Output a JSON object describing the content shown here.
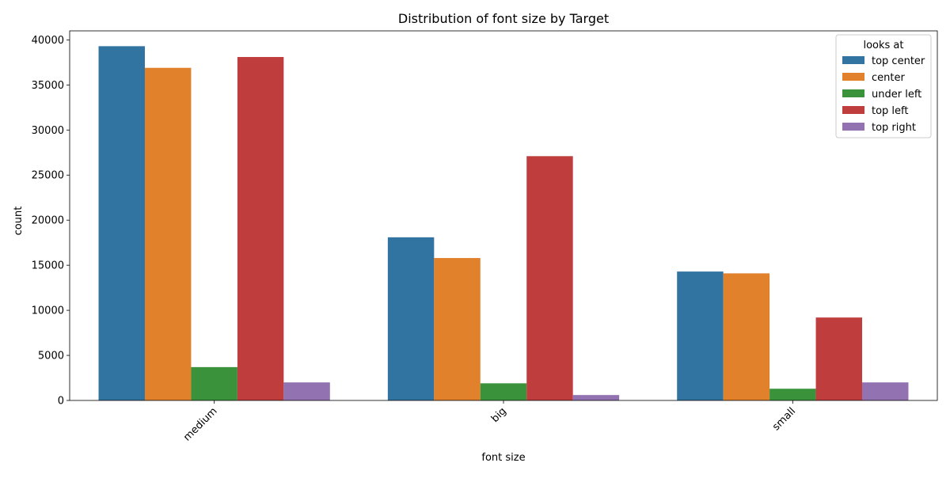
{
  "chart_data": {
    "type": "bar",
    "title": "Distribution of font size by Target",
    "xlabel": "font size",
    "ylabel": "count",
    "categories": [
      "medium",
      "big",
      "small"
    ],
    "ylim": [
      0,
      41000
    ],
    "yticks": [
      0,
      5000,
      10000,
      15000,
      20000,
      25000,
      30000,
      35000,
      40000
    ],
    "ytick_labels": [
      "0",
      "5000",
      "10000",
      "15000",
      "20000",
      "25000",
      "30000",
      "35000",
      "40000"
    ],
    "grid": false,
    "legend": {
      "title": "looks at",
      "position": "top-right"
    },
    "series": [
      {
        "name": "top center",
        "color": "#3274a1",
        "values": [
          39300,
          18100,
          14300
        ]
      },
      {
        "name": "center",
        "color": "#e1812c",
        "values": [
          36900,
          15800,
          14100
        ]
      },
      {
        "name": "under left",
        "color": "#3a923a",
        "values": [
          3700,
          1900,
          1300
        ]
      },
      {
        "name": "top left",
        "color": "#c03d3e",
        "values": [
          38100,
          27100,
          9200
        ]
      },
      {
        "name": "top right",
        "color": "#9372b2",
        "values": [
          2000,
          600,
          2000
        ]
      }
    ]
  }
}
